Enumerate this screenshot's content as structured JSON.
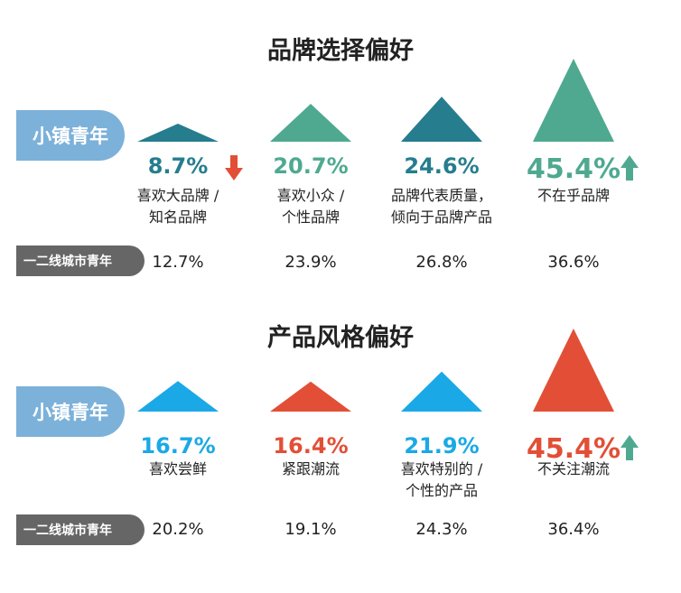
{
  "chart_data": [
    {
      "type": "bar",
      "title": "品牌选择偏好",
      "colors": {
        "teal": "#257d8e",
        "green": "#4ea990"
      },
      "series": [
        {
          "name": "小镇青年",
          "values": [
            8.7,
            20.7,
            24.6,
            45.4
          ]
        },
        {
          "name": "一二线城市青年",
          "values": [
            12.7,
            23.9,
            26.8,
            36.6
          ]
        }
      ],
      "categories": [
        {
          "line1": "喜欢大品牌 /",
          "line2": "知名品牌",
          "color": "#257d8e",
          "pct": "8.7%",
          "big": "12.7%",
          "arrow": "down"
        },
        {
          "line1": "喜欢小众 /",
          "line2": "个性品牌",
          "color": "#4ea990",
          "pct": "20.7%",
          "big": "23.9%",
          "arrow": ""
        },
        {
          "line1": "品牌代表质量，",
          "line2": "倾向于品牌产品",
          "color": "#257d8e",
          "pct": "24.6%",
          "big": "26.8%",
          "arrow": ""
        },
        {
          "line1": "不在乎品牌",
          "line2": "",
          "color": "#4ea990",
          "pct": "45.4%",
          "big": "36.6%",
          "arrow": "up"
        }
      ],
      "small_town_label": "小镇青年",
      "big_city_label": "一二线城市青年"
    },
    {
      "type": "bar",
      "title": "产品风格偏好",
      "colors": {
        "blue": "#1aa9e6",
        "red": "#e24f36"
      },
      "series": [
        {
          "name": "小镇青年",
          "values": [
            16.7,
            16.4,
            21.9,
            45.4
          ]
        },
        {
          "name": "一二线城市青年",
          "values": [
            20.2,
            19.1,
            24.3,
            36.4
          ]
        }
      ],
      "categories": [
        {
          "line1": "喜欢尝鲜",
          "line2": "",
          "color": "#1aa9e6",
          "pct": "16.7%",
          "big": "20.2%",
          "arrow": ""
        },
        {
          "line1": "紧跟潮流",
          "line2": "",
          "color": "#e24f36",
          "pct": "16.4%",
          "big": "19.1%",
          "arrow": ""
        },
        {
          "line1": "喜欢特别的 /",
          "line2": "个性的产品",
          "color": "#1aa9e6",
          "pct": "21.9%",
          "big": "24.3%",
          "arrow": ""
        },
        {
          "line1": "不关注潮流",
          "line2": "",
          "color": "#e24f36",
          "pct": "45.4%",
          "big": "36.4%",
          "arrow": "up"
        }
      ],
      "small_town_label": "小镇青年",
      "big_city_label": "一二线城市青年"
    }
  ],
  "arrow_colors": {
    "down": "#e24f36",
    "up": "#4ea990"
  }
}
